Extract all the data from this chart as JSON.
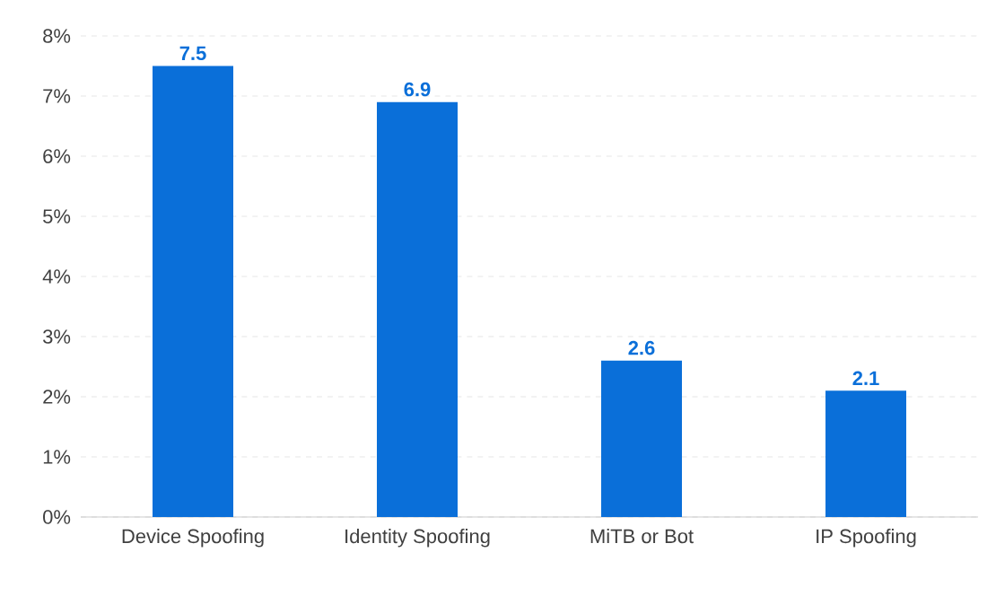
{
  "chart_data": {
    "type": "bar",
    "categories": [
      "Device Spoofing",
      "Identity Spoofing",
      "MiTB or Bot",
      "IP Spoofing"
    ],
    "values": [
      7.5,
      6.9,
      2.6,
      2.1
    ],
    "color": "#0a6fd9",
    "ylim": [
      0,
      8
    ],
    "yticks": [
      {
        "value": 0,
        "label": "0%"
      },
      {
        "value": 1,
        "label": "1%"
      },
      {
        "value": 2,
        "label": "2%"
      },
      {
        "value": 3,
        "label": "3%"
      },
      {
        "value": 4,
        "label": "4%"
      },
      {
        "value": 5,
        "label": "5%"
      },
      {
        "value": 6,
        "label": "6%"
      },
      {
        "value": 7,
        "label": "7%"
      },
      {
        "value": 8,
        "label": "8%"
      }
    ],
    "grid": "y",
    "data_labels": true
  }
}
